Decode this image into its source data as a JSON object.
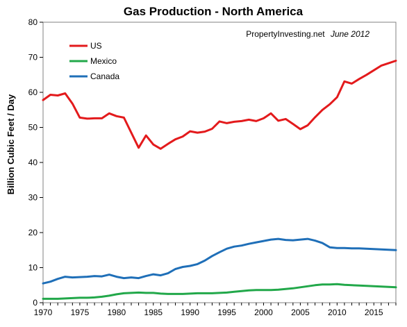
{
  "chart_data": {
    "type": "line",
    "title": "Gas Production - North America",
    "xlabel": "",
    "ylabel": "Billion Cubic Feet / Day",
    "xlim": [
      1970,
      2018
    ],
    "ylim": [
      0,
      80
    ],
    "x_ticks": [
      "1970",
      "1975",
      "1980",
      "1985",
      "1990",
      "1995",
      "2000",
      "2005",
      "2010",
      "2015"
    ],
    "y_ticks": [
      "0",
      "10",
      "20",
      "30",
      "40",
      "50",
      "60",
      "70",
      "80"
    ],
    "grid": false,
    "legend_position": "top-left",
    "annotation": {
      "source": "PropertyInvesting.net",
      "date": "June 2012"
    },
    "x": [
      1970,
      1971,
      1972,
      1973,
      1974,
      1975,
      1976,
      1977,
      1978,
      1979,
      1980,
      1981,
      1982,
      1983,
      1984,
      1985,
      1986,
      1987,
      1988,
      1989,
      1990,
      1991,
      1992,
      1993,
      1994,
      1995,
      1996,
      1997,
      1998,
      1999,
      2000,
      2001,
      2002,
      2003,
      2004,
      2005,
      2006,
      2007,
      2008,
      2009,
      2010,
      2011,
      2012,
      2013,
      2014,
      2015,
      2016,
      2017,
      2018
    ],
    "series": [
      {
        "name": "US",
        "color": "#e31a1c",
        "values": [
          57.8,
          59.3,
          59.1,
          59.7,
          56.8,
          52.8,
          52.5,
          52.6,
          52.6,
          54.0,
          53.2,
          52.8,
          48.5,
          44.2,
          47.7,
          45.1,
          43.9,
          45.3,
          46.6,
          47.4,
          48.9,
          48.5,
          48.8,
          49.6,
          51.7,
          51.2,
          51.6,
          51.8,
          52.2,
          51.8,
          52.6,
          54.0,
          51.9,
          52.4,
          51.0,
          49.5,
          50.6,
          52.9,
          55.0,
          56.6,
          58.6,
          63.1,
          62.5,
          63.8,
          65.0,
          66.3,
          67.6,
          68.3,
          69.0
        ]
      },
      {
        "name": "Mexico",
        "color": "#22a84a",
        "values": [
          1.1,
          1.1,
          1.1,
          1.2,
          1.3,
          1.4,
          1.4,
          1.5,
          1.7,
          2.0,
          2.4,
          2.7,
          2.8,
          2.9,
          2.8,
          2.8,
          2.6,
          2.5,
          2.5,
          2.5,
          2.6,
          2.7,
          2.7,
          2.7,
          2.8,
          2.9,
          3.1,
          3.3,
          3.5,
          3.6,
          3.6,
          3.6,
          3.7,
          3.9,
          4.1,
          4.4,
          4.7,
          5.0,
          5.2,
          5.2,
          5.3,
          5.1,
          5.0,
          4.9,
          4.8,
          4.7,
          4.6,
          4.5,
          4.4
        ]
      },
      {
        "name": "Canada",
        "color": "#1f6fb8",
        "values": [
          5.5,
          6.0,
          6.8,
          7.4,
          7.2,
          7.3,
          7.4,
          7.6,
          7.5,
          8.0,
          7.4,
          7.0,
          7.2,
          7.0,
          7.6,
          8.1,
          7.8,
          8.4,
          9.6,
          10.2,
          10.5,
          11.0,
          12.0,
          13.3,
          14.4,
          15.4,
          16.0,
          16.3,
          16.8,
          17.2,
          17.6,
          18.0,
          18.2,
          17.9,
          17.8,
          18.0,
          18.2,
          17.7,
          17.0,
          15.8,
          15.6,
          15.6,
          15.5,
          15.5,
          15.4,
          15.3,
          15.2,
          15.1,
          15.0
        ]
      }
    ]
  }
}
